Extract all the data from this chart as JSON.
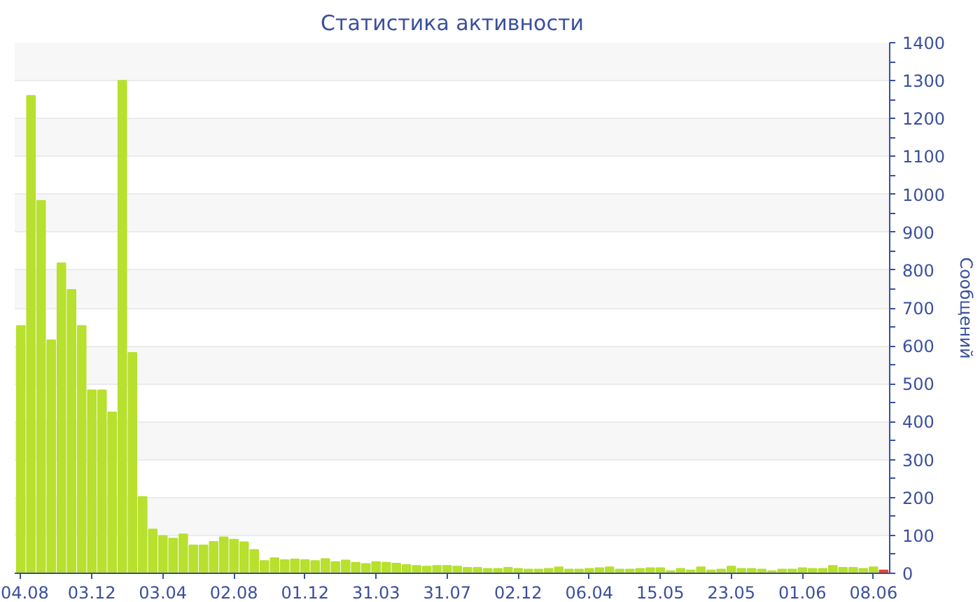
{
  "chart_data": {
    "type": "bar",
    "title": "Статистика активности",
    "ylabel": "Сообщений",
    "categories": [
      "04.08",
      null,
      null,
      null,
      null,
      null,
      null,
      "03.12",
      null,
      null,
      null,
      null,
      null,
      null,
      "03.04",
      null,
      null,
      null,
      null,
      null,
      null,
      "02.08",
      null,
      null,
      null,
      null,
      null,
      null,
      "01.12",
      null,
      null,
      null,
      null,
      null,
      null,
      "31.03",
      null,
      null,
      null,
      null,
      null,
      null,
      "31.07",
      null,
      null,
      null,
      null,
      null,
      null,
      "02.12",
      null,
      null,
      null,
      null,
      null,
      null,
      "06.04",
      null,
      null,
      null,
      null,
      null,
      null,
      "15.05",
      null,
      null,
      null,
      null,
      null,
      null,
      "23.05",
      null,
      null,
      null,
      null,
      null,
      null,
      "01.06",
      null,
      null,
      null,
      null,
      null,
      null,
      "08.06",
      null
    ],
    "values": [
      653,
      1260,
      983,
      615,
      818,
      748,
      653,
      483,
      483,
      425,
      1300,
      582,
      202,
      116,
      99,
      92,
      103,
      74,
      74,
      83,
      95,
      89,
      82,
      62,
      33,
      40,
      35,
      37,
      35,
      33,
      38,
      30,
      34,
      28,
      25,
      30,
      28,
      26,
      22,
      20,
      18,
      20,
      20,
      18,
      15,
      15,
      12,
      12,
      15,
      12,
      10,
      10,
      12,
      16,
      10,
      10,
      12,
      14,
      16,
      10,
      10,
      12,
      14,
      14,
      6,
      12,
      8,
      16,
      8,
      10,
      18,
      12,
      12,
      10,
      6,
      10,
      10,
      14,
      12,
      12,
      20,
      15,
      15,
      12,
      16,
      8
    ],
    "colors": [
      "#b8e02e",
      "#b8e02e",
      "#b8e02e",
      "#b8e02e",
      "#b8e02e",
      "#b8e02e",
      "#b8e02e",
      "#b8e02e",
      "#b8e02e",
      "#b8e02e",
      "#b8e02e",
      "#b8e02e",
      "#b8e02e",
      "#b8e02e",
      "#b8e02e",
      "#b8e02e",
      "#b8e02e",
      "#b8e02e",
      "#b8e02e",
      "#b8e02e",
      "#b8e02e",
      "#b8e02e",
      "#b8e02e",
      "#b8e02e",
      "#b8e02e",
      "#b8e02e",
      "#b8e02e",
      "#b8e02e",
      "#b8e02e",
      "#b8e02e",
      "#b8e02e",
      "#b8e02e",
      "#b8e02e",
      "#b8e02e",
      "#b8e02e",
      "#b8e02e",
      "#b8e02e",
      "#b8e02e",
      "#b8e02e",
      "#b8e02e",
      "#b8e02e",
      "#b8e02e",
      "#b8e02e",
      "#b8e02e",
      "#b8e02e",
      "#b8e02e",
      "#b8e02e",
      "#b8e02e",
      "#b8e02e",
      "#b8e02e",
      "#b8e02e",
      "#b8e02e",
      "#b8e02e",
      "#b8e02e",
      "#b8e02e",
      "#b8e02e",
      "#b8e02e",
      "#b8e02e",
      "#b8e02e",
      "#b8e02e",
      "#b8e02e",
      "#b8e02e",
      "#b8e02e",
      "#b8e02e",
      "#b8e02e",
      "#b8e02e",
      "#b8e02e",
      "#b8e02e",
      "#b8e02e",
      "#b8e02e",
      "#b8e02e",
      "#b8e02e",
      "#b8e02e",
      "#b8e02e",
      "#b8e02e",
      "#b8e02e",
      "#b8e02e",
      "#b8e02e",
      "#b8e02e",
      "#b8e02e",
      "#b8e02e",
      "#b8e02e",
      "#b8e02e",
      "#b8e02e",
      "#b8e02e",
      "#e8452c"
    ],
    "ylim": [
      0,
      1400
    ],
    "yticks": [
      0,
      100,
      200,
      300,
      400,
      500,
      600,
      700,
      800,
      900,
      1000,
      1100,
      1200,
      1300,
      1400
    ],
    "grid": "y"
  }
}
